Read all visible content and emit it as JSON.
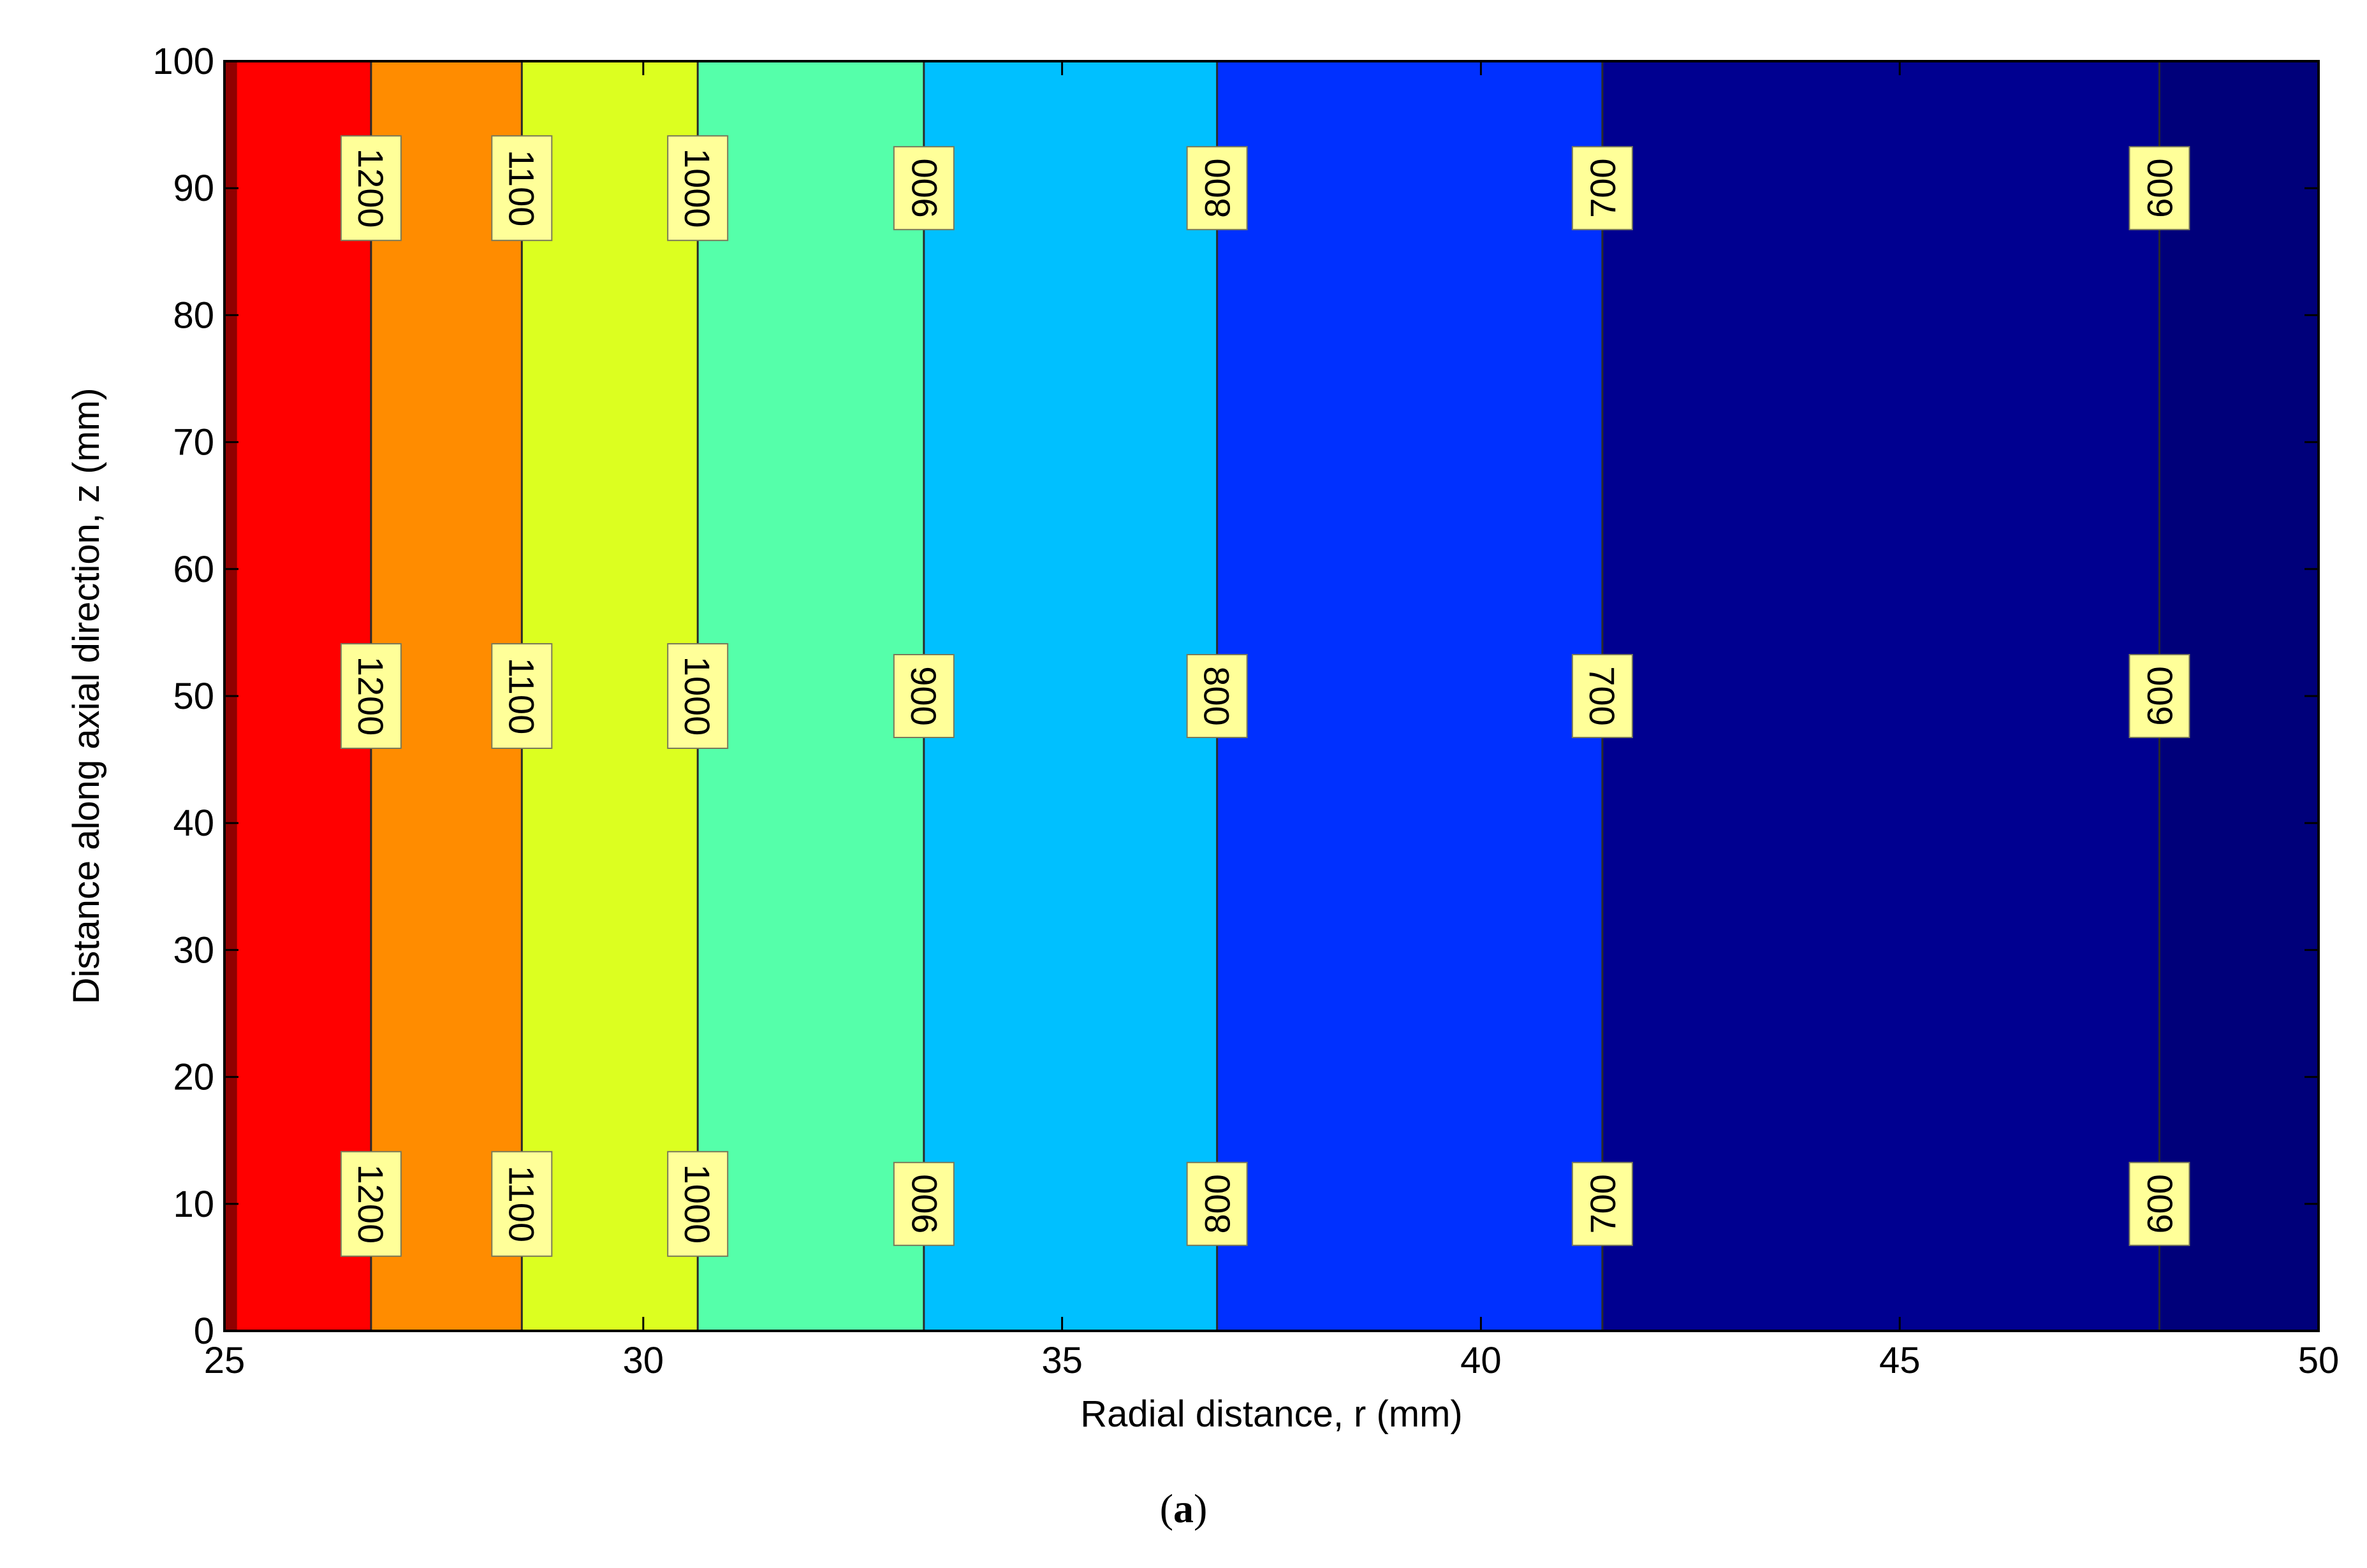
{
  "chart_data": {
    "type": "contour",
    "xlabel": "Radial distance, r (mm)",
    "ylabel": "Distance along axial direction, z (mm)",
    "xlim": [
      25,
      50
    ],
    "ylim": [
      0,
      100
    ],
    "xticks": [
      25,
      30,
      35,
      40,
      45,
      50
    ],
    "yticks": [
      0,
      10,
      20,
      30,
      40,
      50,
      60,
      70,
      80,
      90,
      100
    ],
    "grid": false,
    "bands": [
      {
        "from": 25.0,
        "to": 26.75,
        "color": "#ff0000"
      },
      {
        "from": 26.75,
        "to": 28.55,
        "color": "#ff8c00"
      },
      {
        "from": 28.55,
        "to": 30.65,
        "color": "#dcff20"
      },
      {
        "from": 30.65,
        "to": 33.35,
        "color": "#55ffaa"
      },
      {
        "from": 33.35,
        "to": 36.85,
        "color": "#00c0ff"
      },
      {
        "from": 36.85,
        "to": 41.45,
        "color": "#0030ff"
      },
      {
        "from": 41.45,
        "to": 48.1,
        "color": "#000090"
      },
      {
        "from": 48.1,
        "to": 50.0,
        "color": "#00007a"
      }
    ],
    "edge_band": {
      "from": 25.0,
      "to": 25.15,
      "color": "#900000"
    },
    "contour_levels": [
      {
        "level": "1200",
        "r": 26.75
      },
      {
        "level": "1100",
        "r": 28.55
      },
      {
        "level": "1000",
        "r": 30.65
      },
      {
        "level": "900",
        "r": 33.35
      },
      {
        "level": "800",
        "r": 36.85
      },
      {
        "level": "700",
        "r": 41.45
      },
      {
        "level": "600",
        "r": 48.1
      }
    ],
    "label_z_positions": [
      90,
      50,
      10
    ]
  },
  "caption": {
    "open": "(",
    "letter": "a",
    "close": ")"
  }
}
